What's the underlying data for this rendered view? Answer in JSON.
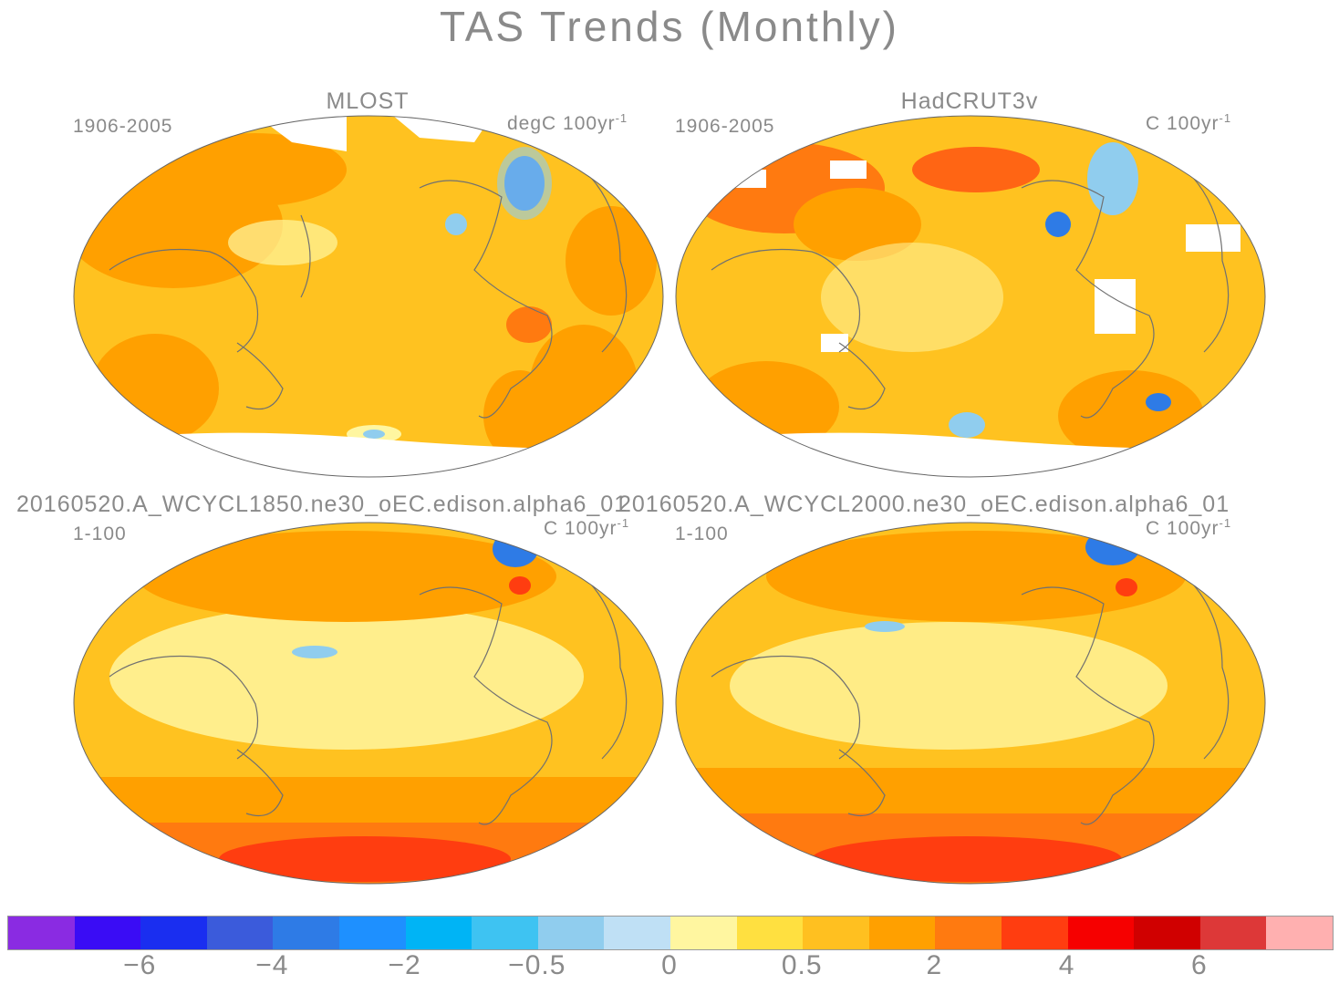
{
  "figure_title": "TAS Trends (Monthly)",
  "panels": [
    {
      "title": "MLOST",
      "period": "1906-2005",
      "units": "degC 100yr",
      "units_sup": "-1"
    },
    {
      "title": "HadCRUT3v",
      "period": "1906-2005",
      "units": "C 100yr",
      "units_sup": "-1"
    },
    {
      "title": "20160520.A_WCYCL1850.ne30_oEC.edison.alpha6_01",
      "period": "1-100",
      "units": "C 100yr",
      "units_sup": "-1"
    },
    {
      "title": "20160520.A_WCYCL2000.ne30_oEC.edison.alpha6_01",
      "period": "1-100",
      "units": "C 100yr",
      "units_sup": "-1"
    }
  ],
  "colorbar": {
    "colors": [
      "#8a2be2",
      "#3a0cf5",
      "#1a2ef0",
      "#3b5bdb",
      "#2e7be6",
      "#1e90ff",
      "#00b4f5",
      "#3ec3f2",
      "#90cdee",
      "#bfe0f5",
      "#fff6a0",
      "#ffe040",
      "#ffc020",
      "#ffa000",
      "#ff7a10",
      "#ff3d10",
      "#f60000",
      "#d00000",
      "#dd3838",
      "#ffb0b0"
    ],
    "tick_labels": [
      "-6",
      "-4",
      "-2",
      "-0.5",
      "0",
      "0.5",
      "2",
      "4",
      "6"
    ]
  },
  "map_colors": {
    "base": "#ffc220",
    "warm": "#ffa000",
    "warmer": "#ff7a10",
    "hot": "#ff3d10",
    "cool": "#fff6a0",
    "cold": "#90cdee",
    "colder": "#2e7be6",
    "coast": "#707070"
  }
}
